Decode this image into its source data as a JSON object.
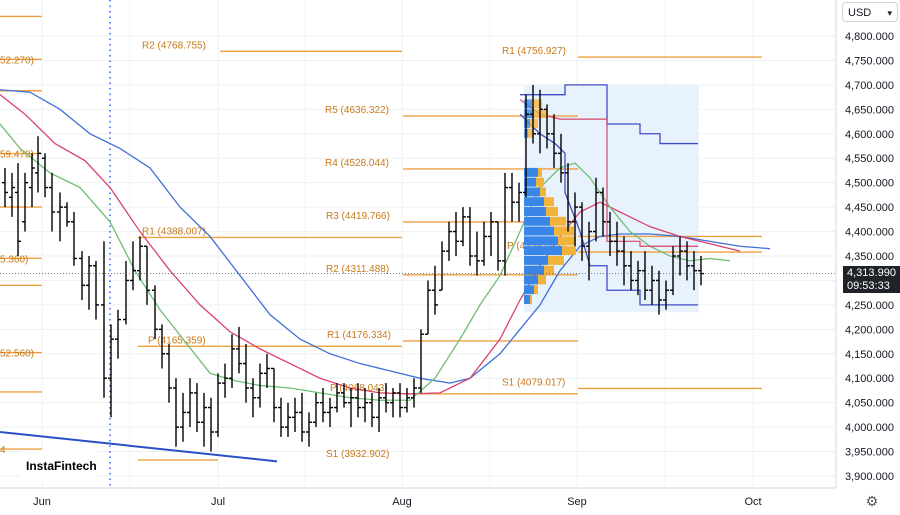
{
  "currency": {
    "label": "USD",
    "icon": "chevron-down-icon"
  },
  "price_tag": {
    "price": "4,313.990",
    "countdown": "09:53:33"
  },
  "brand": {
    "logo_text": "InstaFintech"
  },
  "settings": {
    "icon": "gear-icon"
  },
  "colors": {
    "pivot": "#f0a040",
    "pivot_text": "#c77a1a",
    "ma_fast": "#6fbf73",
    "ma_mid": "#d9446a",
    "ma_slow": "#3f6fd8",
    "trendline": "#2b4fc7",
    "vwap_band": "#3f4cc4",
    "vprofile_blue": "#3a86e6",
    "vprofile_gold": "#f2b33d",
    "range_fill": "#e8f2fd"
  },
  "chart_data": {
    "type": "ohlc",
    "y_axis": {
      "min": 3875,
      "max": 4825,
      "ticks": [
        "3,900.000",
        "3,950.000",
        "4,000.000",
        "4,050.000",
        "4,100.000",
        "4,150.000",
        "4,200.000",
        "4,250.000",
        "4,300.000",
        "4,350.000",
        "4,400.000",
        "4,450.000",
        "4,500.000",
        "4,550.000",
        "4,600.000",
        "4,650.000",
        "4,700.000",
        "4,750.000",
        "4,800.000"
      ]
    },
    "x_axis": {
      "labels": [
        "Jun",
        "Jul",
        "Aug",
        "Sep",
        "Oct"
      ]
    },
    "current_price": 4313.99,
    "pivot_levels": [
      {
        "label": "R2 (4768.755)",
        "value": 4768.755,
        "period": "Jul"
      },
      {
        "label": "R1 (4756.927)",
        "value": 4756.927,
        "period": "Sep"
      },
      {
        "label": "R5 (4636.322)",
        "value": 4636.322,
        "period": "Aug"
      },
      {
        "label": "R4 (4528.044)",
        "value": 4528.044,
        "period": "Aug"
      },
      {
        "label": "R3 (4419.766)",
        "value": 4419.766,
        "period": "Aug"
      },
      {
        "label": "R1 (4388.007)",
        "value": 4388.007,
        "period": "Jul"
      },
      {
        "label": "P (4358.043)",
        "value": 4358.043,
        "period": "Sep"
      },
      {
        "label": "R2 (4311.488)",
        "value": 4311.488,
        "period": "Aug"
      },
      {
        "label": "R1 (4176.334)",
        "value": 4176.334,
        "period": "Aug"
      },
      {
        "label": "P (4165.359)",
        "value": 4165.359,
        "period": "Jul"
      },
      {
        "label": "S1 (4079.017)",
        "value": 4079.017,
        "period": "Sep"
      },
      {
        "label": "P (4068.043)",
        "value": 4068.043,
        "period": "Aug"
      },
      {
        "label": "S1 (3932.902)",
        "value": 3932.902,
        "period": "Jul"
      }
    ],
    "left_cut_labels": [
      {
        "label": "52.270)",
        "value": 4752.27
      },
      {
        "label": "59.470)",
        "value": 4559.47
      },
      {
        "label": "5.360)",
        "value": 4345.36
      },
      {
        "label": "52.560)",
        "value": 4152.56
      },
      {
        "label": "4",
        "value": 3955
      }
    ],
    "series": [
      {
        "name": "",
        "style": "moving-average",
        "color": "ma_fast"
      },
      {
        "name": "",
        "style": "moving-average",
        "color": "ma_mid"
      },
      {
        "name": "",
        "style": "moving-average",
        "color": "ma_slow"
      }
    ],
    "ohlc": [
      {
        "x": 5,
        "h": 4530,
        "l": 4450,
        "o": 4500,
        "c": 4480
      },
      {
        "x": 12,
        "h": 4520,
        "l": 4430,
        "o": 4470,
        "c": 4490
      },
      {
        "x": 18,
        "h": 4540,
        "l": 4350,
        "o": 4480,
        "c": 4380
      },
      {
        "x": 25,
        "h": 4520,
        "l": 4400,
        "o": 4420,
        "c": 4500
      },
      {
        "x": 32,
        "h": 4560,
        "l": 4450,
        "o": 4490,
        "c": 4530
      },
      {
        "x": 38,
        "h": 4595,
        "l": 4480,
        "o": 4520,
        "c": 4560
      },
      {
        "x": 45,
        "h": 4560,
        "l": 4470,
        "o": 4550,
        "c": 4490
      },
      {
        "x": 52,
        "h": 4520,
        "l": 4400,
        "o": 4490,
        "c": 4440
      },
      {
        "x": 60,
        "h": 4480,
        "l": 4380,
        "o": 4440,
        "c": 4450
      },
      {
        "x": 67,
        "h": 4460,
        "l": 4410,
        "o": 4450,
        "c": 4420
      },
      {
        "x": 74,
        "h": 4440,
        "l": 4330,
        "o": 4420,
        "c": 4345
      },
      {
        "x": 82,
        "h": 4360,
        "l": 4260,
        "o": 4345,
        "c": 4290
      },
      {
        "x": 89,
        "h": 4350,
        "l": 4240,
        "o": 4290,
        "c": 4330
      },
      {
        "x": 96,
        "h": 4340,
        "l": 4220,
        "o": 4330,
        "c": 4250
      },
      {
        "x": 104,
        "h": 4380,
        "l": 4060,
        "o": 4250,
        "c": 4100
      },
      {
        "x": 111,
        "h": 4210,
        "l": 4020,
        "o": 4100,
        "c": 4180
      },
      {
        "x": 118,
        "h": 4240,
        "l": 4140,
        "o": 4180,
        "c": 4220
      },
      {
        "x": 126,
        "h": 4340,
        "l": 4210,
        "o": 4220,
        "c": 4300
      },
      {
        "x": 133,
        "h": 4380,
        "l": 4280,
        "o": 4300,
        "c": 4320
      },
      {
        "x": 140,
        "h": 4390,
        "l": 4300,
        "o": 4320,
        "c": 4370
      },
      {
        "x": 147,
        "h": 4370,
        "l": 4250,
        "o": 4370,
        "c": 4280
      },
      {
        "x": 155,
        "h": 4290,
        "l": 4180,
        "o": 4280,
        "c": 4200
      },
      {
        "x": 162,
        "h": 4210,
        "l": 4120,
        "o": 4200,
        "c": 4150
      },
      {
        "x": 169,
        "h": 4170,
        "l": 4050,
        "o": 4150,
        "c": 4080
      },
      {
        "x": 176,
        "h": 4100,
        "l": 3960,
        "o": 4080,
        "c": 4000
      },
      {
        "x": 183,
        "h": 4070,
        "l": 3970,
        "o": 4000,
        "c": 4030
      },
      {
        "x": 190,
        "h": 4100,
        "l": 4000,
        "o": 4030,
        "c": 4070
      },
      {
        "x": 197,
        "h": 4090,
        "l": 3990,
        "o": 4070,
        "c": 4010
      },
      {
        "x": 204,
        "h": 4070,
        "l": 3960,
        "o": 4010,
        "c": 4040
      },
      {
        "x": 211,
        "h": 4060,
        "l": 3950,
        "o": 4040,
        "c": 3990
      },
      {
        "x": 218,
        "h": 4110,
        "l": 3980,
        "o": 3990,
        "c": 4090
      },
      {
        "x": 225,
        "h": 4130,
        "l": 4060,
        "o": 4090,
        "c": 4100
      },
      {
        "x": 232,
        "h": 4190,
        "l": 4080,
        "o": 4100,
        "c": 4160
      },
      {
        "x": 239,
        "h": 4205,
        "l": 4110,
        "o": 4160,
        "c": 4130
      },
      {
        "x": 246,
        "h": 4170,
        "l": 4050,
        "o": 4130,
        "c": 4080
      },
      {
        "x": 253,
        "h": 4100,
        "l": 4020,
        "o": 4080,
        "c": 4060
      },
      {
        "x": 260,
        "h": 4130,
        "l": 4040,
        "o": 4060,
        "c": 4110
      },
      {
        "x": 267,
        "h": 4150,
        "l": 4080,
        "o": 4110,
        "c": 4120
      },
      {
        "x": 274,
        "h": 4120,
        "l": 4010,
        "o": 4120,
        "c": 4040
      },
      {
        "x": 281,
        "h": 4060,
        "l": 3980,
        "o": 4040,
        "c": 4000
      },
      {
        "x": 288,
        "h": 4050,
        "l": 3980,
        "o": 4000,
        "c": 4020
      },
      {
        "x": 295,
        "h": 4060,
        "l": 3990,
        "o": 4020,
        "c": 4030
      },
      {
        "x": 302,
        "h": 4070,
        "l": 3970,
        "o": 4030,
        "c": 3990
      },
      {
        "x": 309,
        "h": 4030,
        "l": 3960,
        "o": 3990,
        "c": 4010
      },
      {
        "x": 316,
        "h": 4070,
        "l": 4000,
        "o": 4010,
        "c": 4050
      },
      {
        "x": 323,
        "h": 4080,
        "l": 4010,
        "o": 4050,
        "c": 4030
      },
      {
        "x": 330,
        "h": 4060,
        "l": 4000,
        "o": 4030,
        "c": 4040
      },
      {
        "x": 337,
        "h": 4090,
        "l": 4030,
        "o": 4040,
        "c": 4070
      },
      {
        "x": 344,
        "h": 4090,
        "l": 4040,
        "o": 4070,
        "c": 4050
      },
      {
        "x": 351,
        "h": 4080,
        "l": 4000,
        "o": 4050,
        "c": 4060
      },
      {
        "x": 358,
        "h": 4090,
        "l": 4020,
        "o": 4060,
        "c": 4040
      },
      {
        "x": 365,
        "h": 4080,
        "l": 4010,
        "o": 4040,
        "c": 4050
      },
      {
        "x": 372,
        "h": 4070,
        "l": 4000,
        "o": 4050,
        "c": 4020
      },
      {
        "x": 379,
        "h": 4080,
        "l": 3990,
        "o": 4020,
        "c": 4060
      },
      {
        "x": 386,
        "h": 4090,
        "l": 4030,
        "o": 4060,
        "c": 4050
      },
      {
        "x": 393,
        "h": 4080,
        "l": 4020,
        "o": 4050,
        "c": 4070
      },
      {
        "x": 400,
        "h": 4090,
        "l": 4020,
        "o": 4070,
        "c": 4040
      },
      {
        "x": 407,
        "h": 4080,
        "l": 4030,
        "o": 4040,
        "c": 4060
      },
      {
        "x": 414,
        "h": 4100,
        "l": 4040,
        "o": 4060,
        "c": 4080
      },
      {
        "x": 421,
        "h": 4200,
        "l": 4070,
        "o": 4080,
        "c": 4190
      },
      {
        "x": 428,
        "h": 4300,
        "l": 4190,
        "o": 4190,
        "c": 4280
      },
      {
        "x": 435,
        "h": 4330,
        "l": 4230,
        "o": 4280,
        "c": 4250
      },
      {
        "x": 442,
        "h": 4380,
        "l": 4280,
        "o": 4280,
        "c": 4360
      },
      {
        "x": 449,
        "h": 4420,
        "l": 4340,
        "o": 4360,
        "c": 4400
      },
      {
        "x": 456,
        "h": 4440,
        "l": 4350,
        "o": 4400,
        "c": 4380
      },
      {
        "x": 463,
        "h": 4450,
        "l": 4370,
        "o": 4380,
        "c": 4430
      },
      {
        "x": 470,
        "h": 4450,
        "l": 4330,
        "o": 4430,
        "c": 4350
      },
      {
        "x": 477,
        "h": 4400,
        "l": 4310,
        "o": 4350,
        "c": 4340
      },
      {
        "x": 484,
        "h": 4420,
        "l": 4330,
        "o": 4340,
        "c": 4390
      },
      {
        "x": 491,
        "h": 4440,
        "l": 4350,
        "o": 4390,
        "c": 4420
      },
      {
        "x": 498,
        "h": 4420,
        "l": 4320,
        "o": 4420,
        "c": 4340
      },
      {
        "x": 505,
        "h": 4520,
        "l": 4310,
        "o": 4340,
        "c": 4490
      },
      {
        "x": 512,
        "h": 4520,
        "l": 4420,
        "o": 4490,
        "c": 4460
      },
      {
        "x": 519,
        "h": 4500,
        "l": 4420,
        "o": 4460,
        "c": 4480
      },
      {
        "x": 526,
        "h": 4680,
        "l": 4470,
        "o": 4480,
        "c": 4640
      },
      {
        "x": 533,
        "h": 4700,
        "l": 4580,
        "o": 4640,
        "c": 4600
      },
      {
        "x": 540,
        "h": 4690,
        "l": 4560,
        "o": 4600,
        "c": 4650
      },
      {
        "x": 547,
        "h": 4660,
        "l": 4570,
        "o": 4650,
        "c": 4600
      },
      {
        "x": 554,
        "h": 4640,
        "l": 4530,
        "o": 4600,
        "c": 4560
      },
      {
        "x": 561,
        "h": 4600,
        "l": 4500,
        "o": 4560,
        "c": 4520
      },
      {
        "x": 568,
        "h": 4540,
        "l": 4400,
        "o": 4520,
        "c": 4420
      },
      {
        "x": 575,
        "h": 4480,
        "l": 4370,
        "o": 4420,
        "c": 4450
      },
      {
        "x": 582,
        "h": 4460,
        "l": 4340,
        "o": 4450,
        "c": 4370
      },
      {
        "x": 589,
        "h": 4420,
        "l": 4300,
        "o": 4370,
        "c": 4400
      },
      {
        "x": 596,
        "h": 4510,
        "l": 4380,
        "o": 4400,
        "c": 4480
      },
      {
        "x": 603,
        "h": 4490,
        "l": 4390,
        "o": 4480,
        "c": 4420
      },
      {
        "x": 610,
        "h": 4440,
        "l": 4350,
        "o": 4420,
        "c": 4380
      },
      {
        "x": 617,
        "h": 4420,
        "l": 4330,
        "o": 4380,
        "c": 4360
      },
      {
        "x": 624,
        "h": 4390,
        "l": 4290,
        "o": 4360,
        "c": 4330
      },
      {
        "x": 631,
        "h": 4360,
        "l": 4280,
        "o": 4330,
        "c": 4300
      },
      {
        "x": 638,
        "h": 4340,
        "l": 4270,
        "o": 4300,
        "c": 4320
      },
      {
        "x": 645,
        "h": 4360,
        "l": 4260,
        "o": 4320,
        "c": 4280
      },
      {
        "x": 652,
        "h": 4330,
        "l": 4250,
        "o": 4280,
        "c": 4300
      },
      {
        "x": 659,
        "h": 4320,
        "l": 4230,
        "o": 4300,
        "c": 4260
      },
      {
        "x": 666,
        "h": 4300,
        "l": 4240,
        "o": 4260,
        "c": 4280
      },
      {
        "x": 673,
        "h": 4370,
        "l": 4270,
        "o": 4280,
        "c": 4350
      },
      {
        "x": 680,
        "h": 4390,
        "l": 4310,
        "o": 4350,
        "c": 4360
      },
      {
        "x": 687,
        "h": 4380,
        "l": 4300,
        "o": 4360,
        "c": 4330
      },
      {
        "x": 694,
        "h": 4360,
        "l": 4280,
        "o": 4330,
        "c": 4320
      },
      {
        "x": 701,
        "h": 4350,
        "l": 4290,
        "o": 4320,
        "c": 4313.99
      }
    ]
  }
}
